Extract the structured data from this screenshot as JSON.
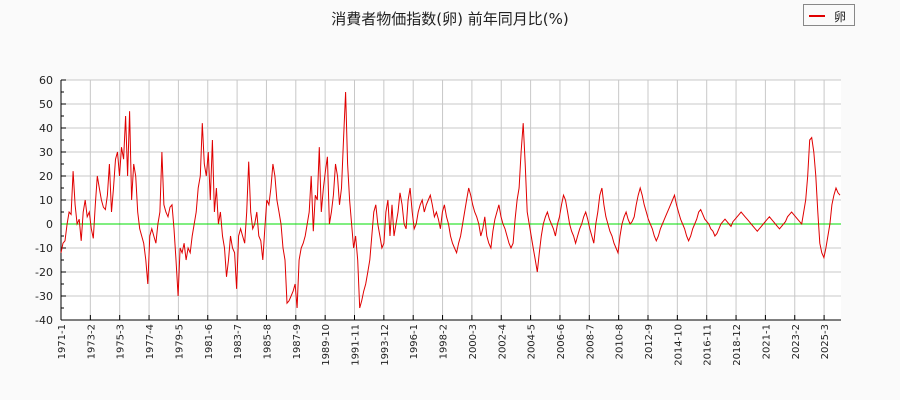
{
  "title": "消費者物価指数(卵) 前年同月比(%)",
  "legend": {
    "label": "卵",
    "color": "#e00000"
  },
  "colors": {
    "line": "#e00000",
    "zero_line": "#00dd00",
    "grid": "#c8c8c8",
    "plot_bg": "#ffffff",
    "page_bg": "#fafafa"
  },
  "chart_data": {
    "type": "line",
    "title": "消費者物価指数(卵) 前年同月比(%)",
    "xlabel": "",
    "ylabel": "",
    "ylim": [
      -40,
      60
    ],
    "yticks": [
      60,
      50,
      40,
      30,
      20,
      10,
      0,
      -10,
      -20,
      -30,
      -40
    ],
    "grid": true,
    "legend_position": "top-right",
    "xtick_labels": [
      "1971-1",
      "1973-2",
      "1975-3",
      "1977-4",
      "1979-5",
      "1981-6",
      "1983-7",
      "1985-8",
      "1987-9",
      "1989-10",
      "1991-11",
      "1993-12",
      "1996-1",
      "1998-2",
      "2000-3",
      "2002-4",
      "2004-5",
      "2006-6",
      "2008-7",
      "2010-8",
      "2012-9",
      "2014-10",
      "2016-11",
      "2018-12",
      "2021-1",
      "2023-2",
      "2025-3"
    ],
    "series": [
      {
        "name": "卵",
        "x_start": "1971-1",
        "frequency": "monthly-sampled (every 2 months)",
        "values": [
          -12,
          -8,
          -7,
          0,
          5,
          4,
          22,
          8,
          0,
          2,
          -7,
          5,
          10,
          3,
          5,
          -2,
          -6,
          8,
          20,
          15,
          10,
          7,
          6,
          12,
          25,
          5,
          15,
          27,
          30,
          20,
          32,
          27,
          45,
          20,
          47,
          10,
          25,
          20,
          5,
          -2,
          -5,
          -8,
          -15,
          -25,
          -5,
          -2,
          -5,
          -8,
          0,
          5,
          30,
          8,
          5,
          3,
          7,
          8,
          -2,
          -15,
          -30,
          -10,
          -12,
          -8,
          -15,
          -10,
          -12,
          -5,
          0,
          5,
          15,
          20,
          42,
          25,
          20,
          30,
          10,
          35,
          5,
          15,
          0,
          5,
          -5,
          -10,
          -22,
          -15,
          -5,
          -10,
          -12,
          -27,
          -5,
          -2,
          -5,
          -8,
          5,
          26,
          5,
          -2,
          0,
          5,
          -5,
          -7,
          -15,
          -2,
          10,
          8,
          15,
          25,
          20,
          10,
          5,
          0,
          -10,
          -15,
          -33,
          -32,
          -30,
          -28,
          -25,
          -35,
          -15,
          -10,
          -8,
          -5,
          0,
          5,
          20,
          -3,
          12,
          10,
          32,
          5,
          15,
          22,
          28,
          0,
          5,
          12,
          25,
          20,
          8,
          15,
          35,
          55,
          25,
          10,
          0,
          -10,
          -5,
          -15,
          -35,
          -32,
          -28,
          -25,
          -20,
          -15,
          -5,
          5,
          8,
          0,
          -5,
          -10,
          -8,
          5,
          10,
          -5,
          8,
          -5,
          0,
          5,
          13,
          8,
          0,
          -2,
          10,
          15,
          5,
          -2,
          0,
          5,
          8,
          10,
          5,
          8,
          10,
          12,
          8,
          3,
          5,
          2,
          -2,
          5,
          8,
          3,
          0,
          -5,
          -8,
          -10,
          -12,
          -8,
          -5,
          0,
          5,
          10,
          15,
          12,
          8,
          5,
          3,
          0,
          -5,
          -2,
          3,
          -5,
          -8,
          -10,
          -3,
          2,
          5,
          8,
          3,
          0,
          -2,
          -5,
          -8,
          -10,
          -8,
          2,
          10,
          15,
          30,
          42,
          25,
          5,
          0,
          -5,
          -10,
          -15,
          -20,
          -12,
          -5,
          0,
          3,
          5,
          2,
          0,
          -2,
          -5,
          0,
          3,
          8,
          12,
          10,
          5,
          0,
          -3,
          -5,
          -8,
          -5,
          -2,
          0,
          3,
          5,
          2,
          -2,
          -5,
          -8,
          0,
          5,
          12,
          15,
          8,
          3,
          0,
          -3,
          -5,
          -8,
          -10,
          -12,
          -5,
          0,
          3,
          5,
          2,
          0,
          1,
          3,
          8,
          12,
          15,
          12,
          8,
          5,
          2,
          0,
          -2,
          -5,
          -7,
          -5,
          -2,
          0,
          2,
          4,
          6,
          8,
          10,
          12,
          8,
          5,
          2,
          0,
          -2,
          -5,
          -7,
          -5,
          -2,
          0,
          2,
          5,
          6,
          4,
          2,
          1,
          0,
          -2,
          -3,
          -5,
          -4,
          -2,
          0,
          1,
          2,
          1,
          0,
          -1,
          1,
          2,
          3,
          4,
          5,
          4,
          3,
          2,
          1,
          0,
          -1,
          -2,
          -3,
          -2,
          -1,
          0,
          1,
          2,
          3,
          2,
          1,
          0,
          -1,
          -2,
          -1,
          0,
          1,
          3,
          4,
          5,
          4,
          3,
          2,
          1,
          0,
          5,
          10,
          20,
          35,
          36,
          30,
          20,
          5,
          -8,
          -12,
          -14,
          -10,
          -5,
          0,
          8,
          12,
          15,
          13,
          12
        ]
      }
    ]
  }
}
